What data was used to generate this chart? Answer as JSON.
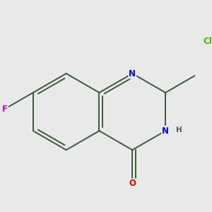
{
  "background_color": "#e9e9e9",
  "bond_color": "#3a5a3a",
  "atom_colors": {
    "N": "#0000ee",
    "O": "#ee0000",
    "F": "#cc00cc",
    "Cl": "#44bb00"
  },
  "bond_width": 1.4,
  "font_size_atoms": 8.5,
  "font_size_H": 7.5,
  "figsize": [
    3.0,
    3.0
  ],
  "dpi": 100
}
